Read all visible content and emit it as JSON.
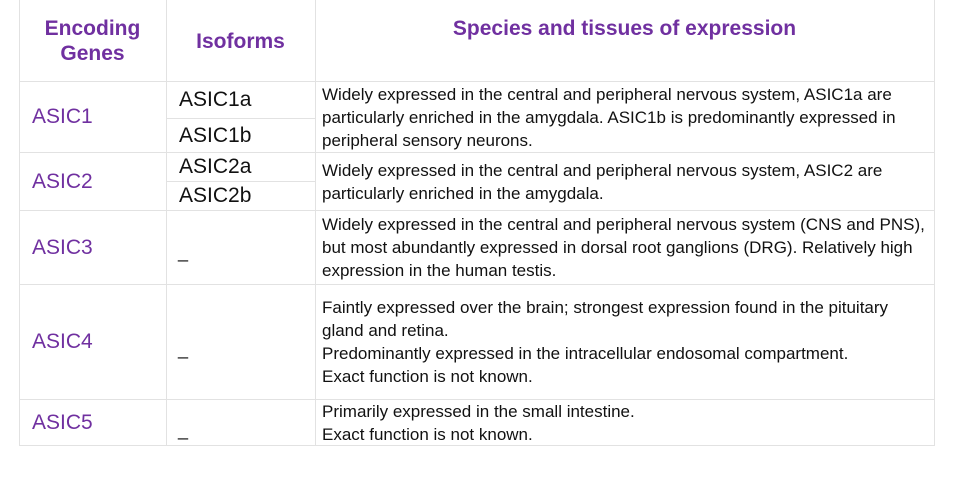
{
  "header": {
    "encoding_genes": "Encoding Genes",
    "isoforms": "Isoforms",
    "expression": "Species and tissues of expression"
  },
  "rows": [
    {
      "gene": "ASIC1",
      "isoforms": [
        "ASIC1a",
        "ASIC1b"
      ],
      "expression": "Widely expressed in the central and peripheral nervous system, ASIC1a are particularly enriched in the amygdala. ASIC1b is predominantly expressed in peripheral sensory neurons."
    },
    {
      "gene": "ASIC2",
      "isoforms": [
        "ASIC2a",
        "ASIC2b"
      ],
      "expression": "Widely expressed in the central and peripheral nervous system, ASIC2 are particularly enriched in the amygdala."
    },
    {
      "gene": "ASIC3",
      "isoform_placeholder": "_",
      "expression": "Widely expressed in the central and peripheral nervous system (CNS and PNS), but most abundantly expressed in dorsal root ganglions (DRG). Relatively high expression in the human testis."
    },
    {
      "gene": "ASIC4",
      "isoform_placeholder": "_",
      "expression_lines": [
        "Faintly expressed over the brain; strongest expression found in the pituitary gland and retina.",
        "Predominantly expressed in the intracellular endosomal compartment.",
        "Exact function is not known."
      ]
    },
    {
      "gene": "ASIC5",
      "isoform_placeholder": "_",
      "expression_lines": [
        "Primarily expressed in the small intestine.",
        "Exact function is not known."
      ]
    }
  ]
}
